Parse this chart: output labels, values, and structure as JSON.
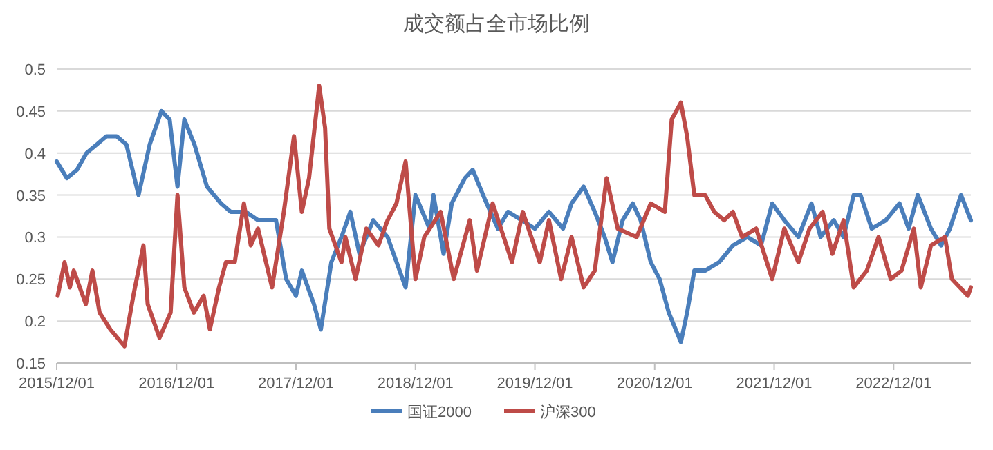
{
  "chart_data": {
    "type": "line",
    "title": "成交额占全市场比例",
    "legend": "bottom",
    "grid": "y",
    "marker": "none",
    "line_style": "solid",
    "xlim": [
      "2015-12-01",
      "2023-07-25"
    ],
    "xticks": [
      {
        "value": "2015-12-01",
        "label": "2015/12/01"
      },
      {
        "value": "2016-12-01",
        "label": "2016/12/01"
      },
      {
        "value": "2017-12-01",
        "label": "2017/12/01"
      },
      {
        "value": "2018-12-01",
        "label": "2018/12/01"
      },
      {
        "value": "2019-12-01",
        "label": "2019/12/01"
      },
      {
        "value": "2020-12-01",
        "label": "2020/12/01"
      },
      {
        "value": "2021-12-01",
        "label": "2021/12/01"
      },
      {
        "value": "2022-12-01",
        "label": "2022/12/01"
      }
    ],
    "ylim": [
      0.15,
      0.5
    ],
    "yticks": [
      0.15,
      0.2,
      0.25,
      0.3,
      0.35,
      0.4,
      0.45,
      0.5
    ],
    "series": [
      {
        "name": "国证2000",
        "color": "#4a7ebb",
        "x": [
          "2015-12-01",
          "2016-01-01",
          "2016-02-01",
          "2016-03-01",
          "2016-04-01",
          "2016-05-01",
          "2016-06-01",
          "2016-07-01",
          "2016-08-07",
          "2016-09-10",
          "2016-10-16",
          "2016-11-10",
          "2016-12-04",
          "2016-12-25",
          "2017-01-25",
          "2017-03-04",
          "2017-04-16",
          "2017-05-16",
          "2017-07-01",
          "2017-08-07",
          "2017-10-01",
          "2017-11-01",
          "2017-12-01",
          "2017-12-19",
          "2018-01-25",
          "2018-02-15",
          "2018-03-19",
          "2018-04-19",
          "2018-05-16",
          "2018-06-13",
          "2018-07-25",
          "2018-09-07",
          "2018-11-01",
          "2018-12-01",
          "2019-01-13",
          "2019-01-25",
          "2019-02-25",
          "2019-03-22",
          "2019-05-01",
          "2019-05-25",
          "2019-07-01",
          "2019-08-10",
          "2019-09-10",
          "2019-10-22",
          "2019-12-01",
          "2020-01-13",
          "2020-02-25",
          "2020-03-22",
          "2020-04-28",
          "2020-06-01",
          "2020-07-01",
          "2020-07-25",
          "2020-08-25",
          "2020-09-25",
          "2020-10-19",
          "2020-11-19",
          "2020-12-16",
          "2021-01-13",
          "2021-02-19",
          "2021-03-10",
          "2021-04-01",
          "2021-05-04",
          "2021-06-16",
          "2021-07-28",
          "2021-09-10",
          "2021-10-22",
          "2021-11-25",
          "2022-01-01",
          "2022-02-13",
          "2022-03-25",
          "2022-04-22",
          "2022-06-01",
          "2022-07-01",
          "2022-08-01",
          "2022-08-22",
          "2022-09-25",
          "2022-11-07",
          "2022-12-19",
          "2023-01-16",
          "2023-02-13",
          "2023-03-25",
          "2023-04-25",
          "2023-05-22",
          "2023-06-25",
          "2023-07-25"
        ],
        "values": [
          0.39,
          0.37,
          0.38,
          0.4,
          0.41,
          0.42,
          0.42,
          0.41,
          0.35,
          0.41,
          0.45,
          0.44,
          0.36,
          0.44,
          0.41,
          0.36,
          0.34,
          0.33,
          0.33,
          0.32,
          0.32,
          0.25,
          0.23,
          0.26,
          0.22,
          0.19,
          0.27,
          0.3,
          0.33,
          0.28,
          0.32,
          0.3,
          0.24,
          0.35,
          0.31,
          0.35,
          0.28,
          0.34,
          0.37,
          0.38,
          0.345,
          0.31,
          0.33,
          0.32,
          0.31,
          0.33,
          0.31,
          0.34,
          0.36,
          0.33,
          0.3,
          0.27,
          0.32,
          0.34,
          0.32,
          0.27,
          0.25,
          0.21,
          0.175,
          0.21,
          0.26,
          0.26,
          0.27,
          0.29,
          0.3,
          0.29,
          0.34,
          0.32,
          0.3,
          0.34,
          0.3,
          0.32,
          0.3,
          0.35,
          0.35,
          0.31,
          0.32,
          0.34,
          0.31,
          0.35,
          0.31,
          0.29,
          0.31,
          0.35,
          0.32
        ]
      },
      {
        "name": "沪深300",
        "color": "#be4b48",
        "x": [
          "2015-12-04",
          "2015-12-25",
          "2016-01-10",
          "2016-01-22",
          "2016-02-28",
          "2016-03-19",
          "2016-04-10",
          "2016-05-13",
          "2016-06-25",
          "2016-07-22",
          "2016-08-22",
          "2016-09-04",
          "2016-10-10",
          "2016-11-13",
          "2016-12-04",
          "2016-12-25",
          "2017-01-23",
          "2017-02-22",
          "2017-03-13",
          "2017-04-10",
          "2017-05-01",
          "2017-05-28",
          "2017-06-25",
          "2017-07-16",
          "2017-08-07",
          "2017-09-19",
          "2017-10-25",
          "2017-11-25",
          "2017-12-19",
          "2018-01-10",
          "2018-02-10",
          "2018-02-28",
          "2018-03-13",
          "2018-04-19",
          "2018-05-01",
          "2018-06-01",
          "2018-07-04",
          "2018-08-10",
          "2018-09-07",
          "2018-10-04",
          "2018-11-01",
          "2018-12-01",
          "2018-12-28",
          "2019-02-16",
          "2019-03-28",
          "2019-05-16",
          "2019-06-07",
          "2019-07-25",
          "2019-09-22",
          "2019-10-25",
          "2019-12-16",
          "2020-01-13",
          "2020-02-19",
          "2020-03-22",
          "2020-04-28",
          "2020-06-01",
          "2020-07-07",
          "2020-08-10",
          "2020-10-07",
          "2020-11-19",
          "2021-01-01",
          "2021-01-22",
          "2021-02-19",
          "2021-03-10",
          "2021-04-01",
          "2021-05-04",
          "2021-06-01",
          "2021-07-01",
          "2021-07-28",
          "2021-08-25",
          "2021-10-07",
          "2021-11-25",
          "2022-01-01",
          "2022-02-13",
          "2022-03-19",
          "2022-04-28",
          "2022-05-28",
          "2022-07-01",
          "2022-08-01",
          "2022-09-10",
          "2022-10-16",
          "2022-11-22",
          "2022-12-25",
          "2023-02-01",
          "2023-02-22",
          "2023-03-25",
          "2023-05-07",
          "2023-05-28",
          "2023-07-16",
          "2023-07-25"
        ],
        "values": [
          0.23,
          0.27,
          0.24,
          0.26,
          0.22,
          0.26,
          0.21,
          0.19,
          0.17,
          0.23,
          0.29,
          0.22,
          0.18,
          0.21,
          0.35,
          0.24,
          0.21,
          0.23,
          0.19,
          0.24,
          0.27,
          0.27,
          0.34,
          0.29,
          0.31,
          0.24,
          0.33,
          0.42,
          0.33,
          0.37,
          0.48,
          0.43,
          0.31,
          0.27,
          0.3,
          0.25,
          0.31,
          0.29,
          0.32,
          0.34,
          0.39,
          0.25,
          0.3,
          0.33,
          0.25,
          0.32,
          0.26,
          0.34,
          0.27,
          0.33,
          0.27,
          0.32,
          0.25,
          0.3,
          0.24,
          0.26,
          0.37,
          0.31,
          0.3,
          0.34,
          0.33,
          0.44,
          0.46,
          0.42,
          0.35,
          0.35,
          0.33,
          0.32,
          0.33,
          0.3,
          0.31,
          0.25,
          0.31,
          0.27,
          0.31,
          0.33,
          0.28,
          0.32,
          0.24,
          0.26,
          0.3,
          0.25,
          0.26,
          0.31,
          0.24,
          0.29,
          0.3,
          0.25,
          0.23,
          0.24
        ]
      }
    ]
  }
}
